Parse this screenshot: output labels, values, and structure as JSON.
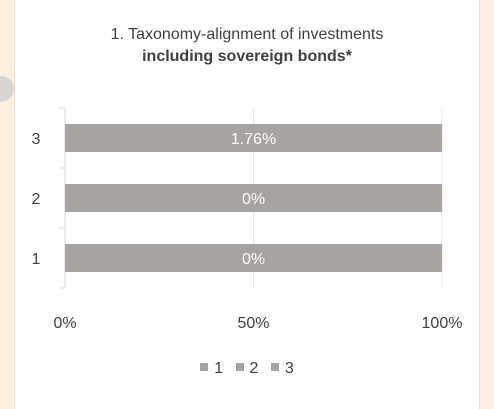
{
  "chart_data": {
    "type": "bar",
    "orientation": "horizontal",
    "title_line1": "1. Taxonomy-alignment of investments",
    "title_line2": "including sovereign bonds*",
    "categories": [
      "3",
      "2",
      "1"
    ],
    "values": [
      100,
      100,
      100
    ],
    "data_labels": [
      "1.76%",
      "0%",
      "0%"
    ],
    "x_ticks": [
      "0%",
      "50%",
      "100%"
    ],
    "xlim": [
      0,
      100
    ],
    "grid": true,
    "legend_position": "bottom",
    "legend": [
      "1",
      "2",
      "3"
    ],
    "colors": {
      "bar": "#a6a3a0",
      "grid": "#e6e6e6",
      "text": "#404040",
      "label": "#ffffff"
    }
  }
}
